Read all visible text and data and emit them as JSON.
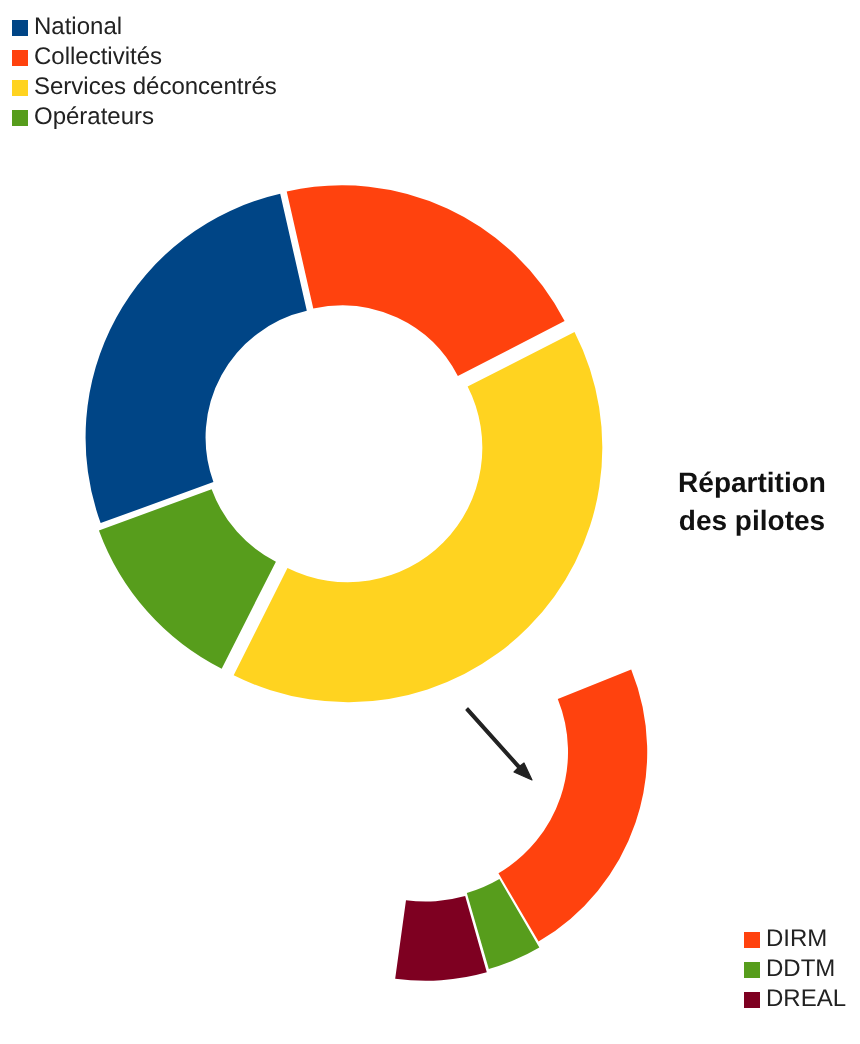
{
  "chart_data": [
    {
      "type": "donut",
      "title": "Répartition des pilotes",
      "categories": [
        "National",
        "Collectivités",
        "Services déconcentrés",
        "Opérateurs"
      ],
      "values": [
        27,
        21,
        40,
        12
      ],
      "colors": [
        "#004586",
        "#ff420e",
        "#ffd320",
        "#579d1c"
      ],
      "legend": "top left"
    },
    {
      "type": "donut",
      "categories": [
        "DIRM",
        "DDTM",
        "DREAL"
      ],
      "values": [
        68,
        12,
        20
      ],
      "colors": [
        "#ff420e",
        "#579d1c",
        "#7e0021"
      ],
      "legend": "bottom right"
    }
  ]
}
